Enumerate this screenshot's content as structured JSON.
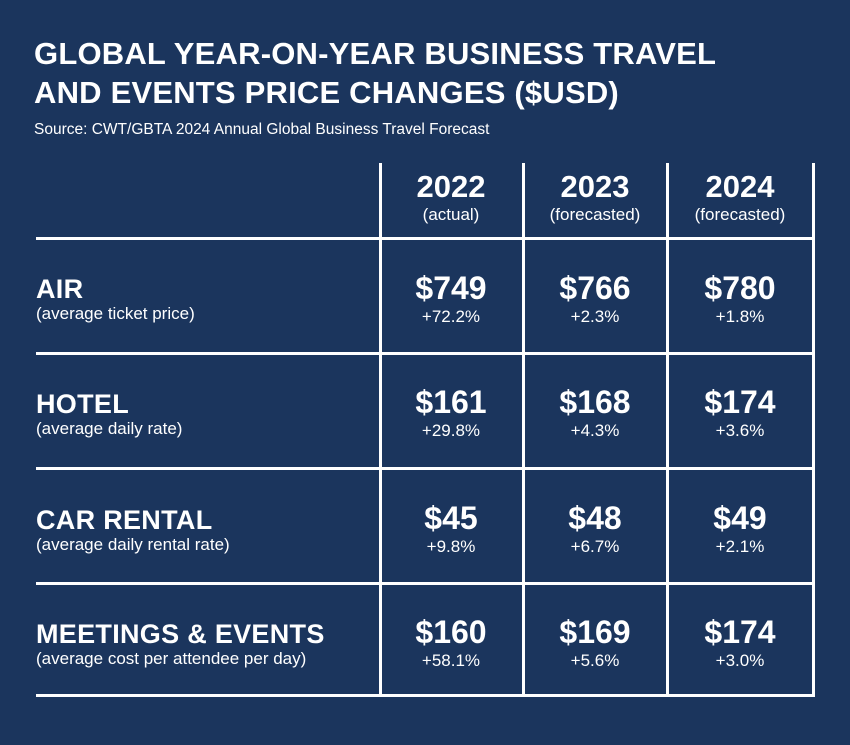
{
  "title_line1": "GLOBAL YEAR-ON-YEAR BUSINESS TRAVEL",
  "title_line2": "AND EVENTS PRICE CHANGES ($USD)",
  "source": "Source: CWT/GBTA 2024 Annual Global Business Travel Forecast",
  "columns": [
    {
      "year": "2022",
      "note": "(actual)"
    },
    {
      "year": "2023",
      "note": "(forecasted)"
    },
    {
      "year": "2024",
      "note": "(forecasted)"
    }
  ],
  "rows": [
    {
      "category": "AIR",
      "sub": "(average ticket price)",
      "cells": [
        {
          "price": "$749",
          "change": "+72.2%"
        },
        {
          "price": "$766",
          "change": "+2.3%"
        },
        {
          "price": "$780",
          "change": "+1.8%"
        }
      ]
    },
    {
      "category": "HOTEL",
      "sub": "(average daily rate)",
      "cells": [
        {
          "price": "$161",
          "change": "+29.8%"
        },
        {
          "price": "$168",
          "change": "+4.3%"
        },
        {
          "price": "$174",
          "change": "+3.6%"
        }
      ]
    },
    {
      "category": "CAR RENTAL",
      "sub": "(average daily rental rate)",
      "cells": [
        {
          "price": "$45",
          "change": "+9.8%"
        },
        {
          "price": "$48",
          "change": "+6.7%"
        },
        {
          "price": "$49",
          "change": "+2.1%"
        }
      ]
    },
    {
      "category": "MEETINGS & EVENTS",
      "sub": "(average cost per attendee per day)",
      "cells": [
        {
          "price": "$160",
          "change": "+58.1%"
        },
        {
          "price": "$169",
          "change": "+5.6%"
        },
        {
          "price": "$174",
          "change": "+3.0%"
        }
      ]
    }
  ],
  "chart_data": {
    "type": "table",
    "columns": [
      "2022 (actual)",
      "2023 (forecasted)",
      "2024 (forecasted)"
    ],
    "rows": [
      "AIR (average ticket price)",
      "HOTEL (average daily rate)",
      "CAR RENTAL (average daily rental rate)",
      "MEETINGS & EVENTS (average cost per attendee per day)"
    ],
    "values": [
      [
        749,
        766,
        780
      ],
      [
        161,
        168,
        174
      ],
      [
        45,
        48,
        49
      ],
      [
        160,
        169,
        174
      ]
    ],
    "changes_pct": [
      [
        72.2,
        2.3,
        1.8
      ],
      [
        29.8,
        4.3,
        3.6
      ],
      [
        9.8,
        6.7,
        2.1
      ],
      [
        58.1,
        5.6,
        3.0
      ]
    ]
  },
  "colors": {
    "background": "#1b355d",
    "text": "#ffffff",
    "grid": "#ffffff"
  }
}
